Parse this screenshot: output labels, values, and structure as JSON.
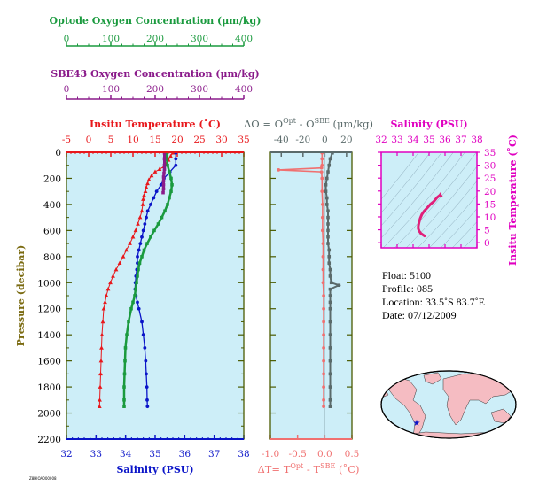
{
  "float_info": {
    "float_line": "Float:  5100",
    "profile_line": "Profile:  085",
    "location_line": "Location:  33.5˚S  83.7˚E",
    "date_line": "Date:  07/12/2009"
  },
  "footer_stamp": "Z8HIOA000008",
  "colors": {
    "temperature": "#e8181c",
    "salinity": "#0a14c8",
    "optode": "#1a9a3e",
    "sbe": "#8a1a8a",
    "delta_o": "#5a6a6a",
    "delta_t": "#f07070",
    "ts_line": "#e0207a",
    "ts_axis": "#e000c0",
    "plot_bg": "#cdeef8",
    "frame": "#4a5a00",
    "pressure_label": "#7a6a10"
  },
  "chart_data": [
    {
      "type": "scatter",
      "name": "main-profile",
      "title": "",
      "ylabel": "Pressure (decibar)",
      "ylim": [
        0,
        2200
      ],
      "yticks": [
        "0",
        "200",
        "400",
        "600",
        "800",
        "1000",
        "1200",
        "1400",
        "1600",
        "1800",
        "2000",
        "2200"
      ],
      "axes": {
        "temperature": {
          "label": "Insitu Temperature (˚C)",
          "range": [
            -5,
            35
          ],
          "ticks": [
            "-5",
            "0",
            "5",
            "10",
            "15",
            "20",
            "25",
            "30",
            "35"
          ]
        },
        "salinity": {
          "label": "Salinity (PSU)",
          "range": [
            32,
            38
          ],
          "ticks": [
            "32",
            "33",
            "34",
            "35",
            "36",
            "37",
            "38"
          ]
        },
        "optode": {
          "label": "Optode Oxygen Concentration (μm/kg)",
          "range": [
            0,
            400
          ],
          "ticks": [
            "0",
            "100",
            "200",
            "300",
            "400"
          ]
        },
        "sbe": {
          "label": "SBE43 Oxygen Concentration (μm/kg)",
          "range": [
            0,
            400
          ],
          "ticks": [
            "0",
            "100",
            "200",
            "300",
            "400"
          ]
        }
      },
      "series": [
        {
          "name": "temperature",
          "marker": "triangle",
          "points": [
            [
              19.0,
              5
            ],
            [
              18.5,
              30
            ],
            [
              18.0,
              60
            ],
            [
              17.5,
              90
            ],
            [
              17.0,
              110
            ],
            [
              16.0,
              130
            ],
            [
              15.0,
              150
            ],
            [
              14.2,
              180
            ],
            [
              13.6,
              210
            ],
            [
              13.3,
              240
            ],
            [
              13.0,
              270
            ],
            [
              12.8,
              300
            ],
            [
              12.5,
              330
            ],
            [
              12.3,
              360
            ],
            [
              12.2,
              400
            ],
            [
              12.0,
              450
            ],
            [
              11.6,
              500
            ],
            [
              11.1,
              550
            ],
            [
              10.6,
              600
            ],
            [
              10.0,
              650
            ],
            [
              9.3,
              700
            ],
            [
              8.5,
              750
            ],
            [
              7.8,
              800
            ],
            [
              7.0,
              850
            ],
            [
              6.2,
              900
            ],
            [
              5.5,
              950
            ],
            [
              4.9,
              1000
            ],
            [
              4.4,
              1050
            ],
            [
              4.0,
              1100
            ],
            [
              3.7,
              1150
            ],
            [
              3.4,
              1200
            ],
            [
              3.2,
              1300
            ],
            [
              3.0,
              1400
            ],
            [
              2.9,
              1500
            ],
            [
              2.8,
              1600
            ],
            [
              2.7,
              1700
            ],
            [
              2.6,
              1800
            ],
            [
              2.5,
              1900
            ],
            [
              2.45,
              1950
            ]
          ]
        },
        {
          "name": "salinity",
          "marker": "circle",
          "points": [
            [
              35.7,
              5
            ],
            [
              35.7,
              50
            ],
            [
              35.7,
              100
            ],
            [
              35.5,
              150
            ],
            [
              35.3,
              200
            ],
            [
              35.2,
              250
            ],
            [
              35.05,
              300
            ],
            [
              34.95,
              350
            ],
            [
              34.85,
              400
            ],
            [
              34.75,
              450
            ],
            [
              34.7,
              500
            ],
            [
              34.65,
              550
            ],
            [
              34.6,
              600
            ],
            [
              34.55,
              650
            ],
            [
              34.5,
              700
            ],
            [
              34.45,
              750
            ],
            [
              34.4,
              800
            ],
            [
              34.4,
              850
            ],
            [
              34.38,
              900
            ],
            [
              34.35,
              950
            ],
            [
              34.33,
              1000
            ],
            [
              34.32,
              1050
            ],
            [
              34.35,
              1100
            ],
            [
              34.4,
              1150
            ],
            [
              34.45,
              1200
            ],
            [
              34.55,
              1300
            ],
            [
              34.6,
              1400
            ],
            [
              34.65,
              1500
            ],
            [
              34.68,
              1600
            ],
            [
              34.7,
              1700
            ],
            [
              34.72,
              1800
            ],
            [
              34.73,
              1900
            ],
            [
              34.74,
              1950
            ]
          ]
        },
        {
          "name": "optode_oxygen",
          "marker": "square",
          "points": [
            [
              225,
              5
            ],
            [
              226,
              50
            ],
            [
              228,
              100
            ],
            [
              232,
              150
            ],
            [
              236,
              200
            ],
            [
              238,
              250
            ],
            [
              236,
              300
            ],
            [
              232,
              350
            ],
            [
              228,
              400
            ],
            [
              222,
              450
            ],
            [
              215,
              500
            ],
            [
              207,
              550
            ],
            [
              198,
              600
            ],
            [
              190,
              650
            ],
            [
              182,
              700
            ],
            [
              175,
              750
            ],
            [
              170,
              800
            ],
            [
              165,
              850
            ],
            [
              162,
              900
            ],
            [
              160,
              950
            ],
            [
              158,
              1000
            ],
            [
              156,
              1050
            ],
            [
              154,
              1100
            ],
            [
              150,
              1150
            ],
            [
              146,
              1200
            ],
            [
              140,
              1300
            ],
            [
              136,
              1400
            ],
            [
              133,
              1500
            ],
            [
              132,
              1600
            ],
            [
              131,
              1700
            ],
            [
              130,
              1800
            ],
            [
              130,
              1900
            ],
            [
              130,
              1950
            ]
          ]
        },
        {
          "name": "sbe_oxygen",
          "marker": "square",
          "points": [
            [
              221,
              5
            ],
            [
              221,
              50
            ],
            [
              221,
              100
            ],
            [
              221,
              130
            ],
            [
              220,
              160
            ],
            [
              219,
              190
            ],
            [
              219,
              220
            ],
            [
              219,
              250
            ],
            [
              219,
              280
            ],
            [
              218,
              310
            ]
          ]
        }
      ]
    },
    {
      "type": "scatter",
      "name": "delta-profile",
      "ylim": [
        0,
        2200
      ],
      "axes": {
        "delta_o": {
          "label": "ΔO = O",
          "label_sup1": "Opt",
          "label_mid": " - O",
          "label_sup2": "SBE",
          "label_end": " (μm/kg)",
          "range": [
            -50,
            25
          ],
          "ticks": [
            "-40",
            "-20",
            "0",
            "20"
          ]
        },
        "delta_t": {
          "label": "ΔT= T",
          "label_sup1": "Opt",
          "label_mid": " - T",
          "label_sup2": "SBE",
          "label_end": " (˚C)",
          "range": [
            -1.0,
            0.5
          ],
          "ticks": [
            "-1.0",
            "-0.5",
            "0.0",
            "0.5"
          ]
        }
      },
      "series": [
        {
          "name": "delta_o",
          "marker": "square",
          "points": [
            [
              7,
              5
            ],
            [
              5,
              50
            ],
            [
              4,
              100
            ],
            [
              3,
              150
            ],
            [
              2,
              200
            ],
            [
              1,
              250
            ],
            [
              1,
              300
            ],
            [
              2,
              350
            ],
            [
              2,
              400
            ],
            [
              3,
              450
            ],
            [
              3,
              500
            ],
            [
              3,
              550
            ],
            [
              3,
              600
            ],
            [
              3,
              650
            ],
            [
              3,
              700
            ],
            [
              4,
              750
            ],
            [
              4,
              800
            ],
            [
              4,
              850
            ],
            [
              5,
              900
            ],
            [
              5,
              950
            ],
            [
              6,
              1000
            ],
            [
              13,
              1020
            ],
            [
              5,
              1050
            ],
            [
              5,
              1100
            ],
            [
              5,
              1150
            ],
            [
              5,
              1200
            ],
            [
              5,
              1300
            ],
            [
              5,
              1400
            ],
            [
              5,
              1500
            ],
            [
              5,
              1600
            ],
            [
              5,
              1700
            ],
            [
              5,
              1800
            ],
            [
              5,
              1900
            ],
            [
              5,
              1950
            ]
          ]
        },
        {
          "name": "delta_t",
          "marker": "circle",
          "points": [
            [
              -0.05,
              5
            ],
            [
              -0.05,
              50
            ],
            [
              -0.05,
              100
            ],
            [
              -0.06,
              120
            ],
            [
              -0.85,
              135
            ],
            [
              -0.06,
              150
            ],
            [
              -0.05,
              200
            ],
            [
              -0.05,
              300
            ],
            [
              -0.04,
              400
            ],
            [
              -0.04,
              500
            ],
            [
              -0.04,
              600
            ],
            [
              -0.03,
              700
            ],
            [
              -0.03,
              800
            ],
            [
              -0.03,
              900
            ],
            [
              -0.03,
              1000
            ],
            [
              -0.02,
              1100
            ],
            [
              -0.02,
              1200
            ],
            [
              -0.02,
              1300
            ],
            [
              -0.02,
              1400
            ],
            [
              -0.02,
              1500
            ],
            [
              -0.02,
              1600
            ],
            [
              -0.02,
              1700
            ],
            [
              -0.02,
              1800
            ],
            [
              -0.02,
              1900
            ],
            [
              -0.02,
              1950
            ]
          ]
        }
      ]
    },
    {
      "type": "line",
      "name": "ts-diagram",
      "xlabel": "Salinity (PSU)",
      "ylabel": "Insitu Temperature (˚C)",
      "xlim": [
        32,
        38
      ],
      "ylim": [
        -2,
        35
      ],
      "xticks": [
        "32",
        "33",
        "34",
        "35",
        "36",
        "37",
        "38"
      ],
      "yticks": [
        "0",
        "5",
        "10",
        "15",
        "20",
        "25",
        "30",
        "35"
      ],
      "series": [
        {
          "name": "ts",
          "points": [
            [
              35.7,
              18.5
            ],
            [
              35.5,
              17.5
            ],
            [
              35.3,
              16.0
            ],
            [
              35.1,
              15.0
            ],
            [
              34.9,
              13.6
            ],
            [
              34.7,
              12.3
            ],
            [
              34.55,
              11.0
            ],
            [
              34.45,
              9.5
            ],
            [
              34.38,
              8.0
            ],
            [
              34.33,
              6.5
            ],
            [
              34.32,
              5.5
            ],
            [
              34.38,
              4.5
            ],
            [
              34.5,
              3.5
            ],
            [
              34.62,
              3.0
            ],
            [
              34.72,
              2.6
            ]
          ]
        }
      ]
    }
  ]
}
